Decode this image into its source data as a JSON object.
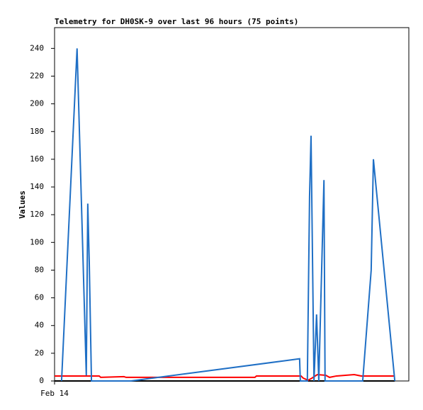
{
  "chart_data": {
    "type": "line",
    "title": "Telemetry for DH0SK-9 over last 96 hours (75 points)",
    "y_label": "Values",
    "xlim": [
      0,
      96
    ],
    "xticks": [
      {
        "value": 0,
        "label": "Feb 14"
      }
    ],
    "ylim": [
      0,
      255
    ],
    "yticks": [
      0,
      20,
      40,
      60,
      80,
      100,
      120,
      140,
      160,
      180,
      200,
      220,
      240
    ],
    "grid": false,
    "series": [
      {
        "color": "#000000",
        "x": [
          0,
          92.2
        ],
        "values": [
          0,
          0
        ]
      },
      {
        "color": "#ff0000",
        "x": [
          0,
          12.1,
          12.5,
          18.8,
          19.4,
          54.3,
          54.7,
          66.8,
          67.4,
          68.7,
          69.7,
          71.2,
          73.5,
          74.5,
          76.4,
          81.2,
          83.1,
          92.2
        ],
        "values": [
          3.6,
          3.6,
          2.6,
          3.1,
          2.6,
          2.6,
          3.6,
          3.6,
          2,
          0.5,
          2,
          4.6,
          4.1,
          2.6,
          3.6,
          4.6,
          3.6,
          3.6
        ]
      },
      {
        "color": "#1f6fc5",
        "x": [
          1.9,
          6.1,
          8.6,
          9.0,
          9.4,
          10.0,
          20.7,
          66.4,
          66.6,
          68.5,
          69.1,
          69.5,
          69.9,
          70.3,
          71.0,
          71.6,
          73.0,
          73.3,
          83.5,
          85.8,
          86.4,
          92.2
        ],
        "values": [
          0,
          240,
          4,
          128,
          86,
          0,
          0,
          16,
          0,
          0,
          133,
          177,
          88,
          0,
          48,
          0,
          145,
          0,
          0,
          80,
          160,
          0
        ]
      }
    ]
  }
}
